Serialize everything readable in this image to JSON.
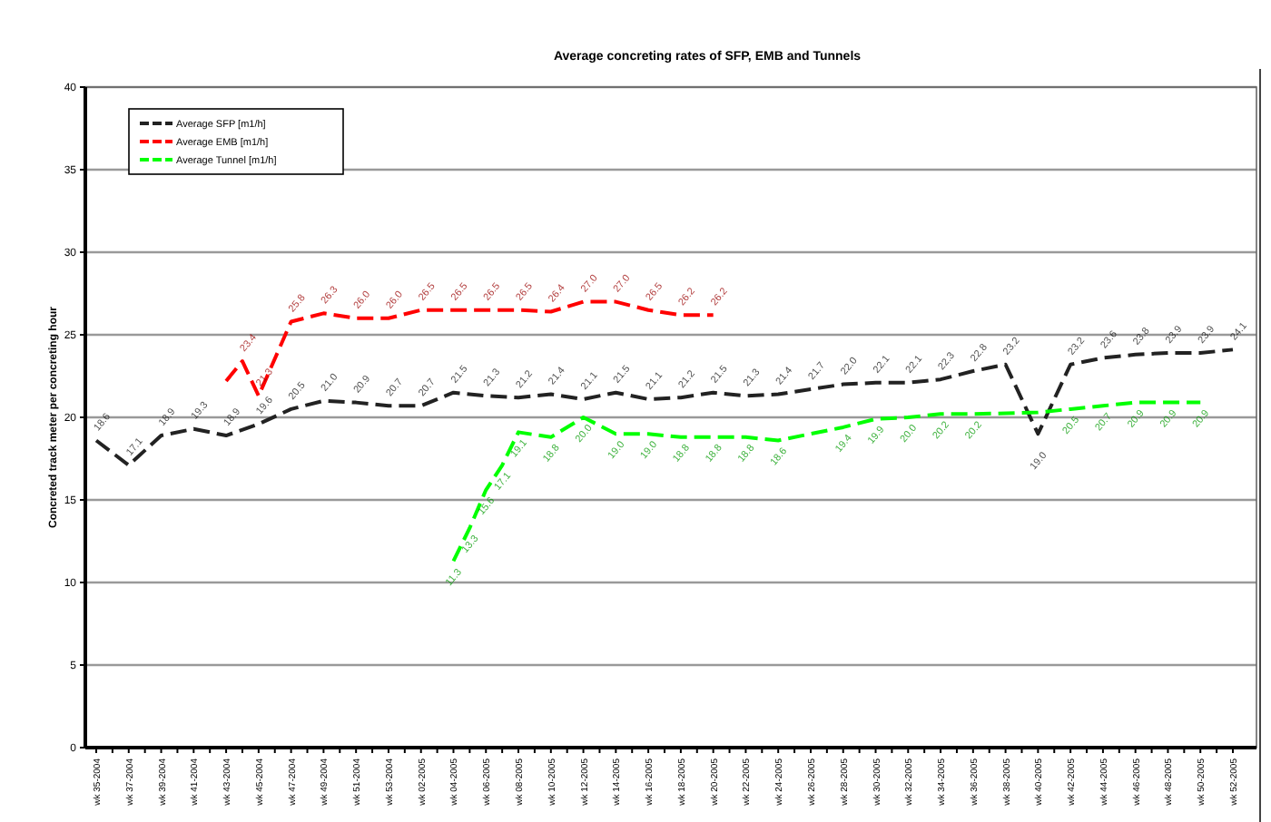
{
  "chart_data": {
    "type": "line",
    "title": "Average concreting rates of SFP, EMB and Tunnels",
    "ylabel": "Concreted track meter per concreting hour",
    "categories": [
      "wk 35-2004",
      null,
      "wk 37-2004",
      null,
      "wk 39-2004",
      null,
      "wk 41-2004",
      null,
      "wk 43-2004",
      null,
      "wk 45-2004",
      null,
      "wk 47-2004",
      null,
      "wk 49-2004",
      null,
      "wk 51-2004",
      null,
      "wk 53-2004",
      null,
      "wk 02-2005",
      null,
      "wk 04-2005",
      null,
      "wk 06-2005",
      null,
      "wk 08-2005",
      null,
      "wk 10-2005",
      null,
      "wk 12-2005",
      null,
      "wk 14-2005",
      null,
      "wk 16-2005",
      null,
      "wk 18-2005",
      null,
      "wk 20-2005",
      null,
      "wk 22-2005",
      null,
      "wk 24-2005",
      null,
      "wk 26-2005",
      null,
      "wk 28-2005",
      null,
      "wk 30-2005",
      null,
      "wk 32-2005",
      null,
      "wk 34-2005",
      null,
      "wk 36-2005",
      null,
      "wk 38-2005",
      null,
      "wk 40-2005",
      null,
      "wk 42-2005",
      null,
      "wk 44-2005",
      null,
      "wk 46-2005",
      null,
      "wk 48-2005",
      null,
      "wk 50-2005",
      null,
      "wk 52-2005"
    ],
    "series": [
      {
        "name": "Average SFP [m1/h]",
        "color": "#222222",
        "values": [
          18.6,
          null,
          17.1,
          null,
          18.9,
          null,
          19.3,
          null,
          18.9,
          null,
          19.6,
          null,
          20.5,
          null,
          21.0,
          null,
          20.9,
          null,
          20.7,
          null,
          20.7,
          null,
          21.5,
          null,
          21.3,
          null,
          21.2,
          null,
          21.4,
          null,
          21.1,
          null,
          21.5,
          null,
          21.1,
          null,
          21.2,
          null,
          21.5,
          null,
          21.3,
          null,
          21.4,
          null,
          21.7,
          null,
          22.0,
          null,
          22.1,
          null,
          22.1,
          null,
          22.3,
          null,
          22.8,
          null,
          23.2,
          null,
          19.0,
          null,
          23.2,
          null,
          23.6,
          null,
          23.8,
          null,
          23.9,
          null,
          23.9,
          null,
          24.1
        ],
        "value_labels": [
          "18.6",
          null,
          "17.1",
          null,
          "18.9",
          null,
          "19.3",
          null,
          "18.9",
          null,
          "19.6",
          null,
          "20.5",
          null,
          "21.0",
          null,
          "20.9",
          null,
          "20.7",
          null,
          "20.7",
          null,
          "21.5",
          null,
          "21.3",
          null,
          "21.2",
          null,
          "21.4",
          null,
          "21.1",
          null,
          "21.5",
          null,
          "21.1",
          null,
          "21.2",
          null,
          "21.5",
          null,
          "21.3",
          null,
          "21.4",
          null,
          "21.7",
          null,
          "22.0",
          null,
          "22.1",
          null,
          "22.1",
          null,
          "22.3",
          null,
          "22.8",
          null,
          "23.2",
          null,
          "19.0",
          null,
          "23.2",
          null,
          "23.6",
          null,
          "23.8",
          null,
          "23.9",
          null,
          "23.9",
          null,
          "24.1"
        ]
      },
      {
        "name": "Average EMB [m1/h]",
        "color": "#ff0000",
        "values": [
          null,
          null,
          null,
          null,
          null,
          null,
          null,
          null,
          22.2,
          23.4,
          21.3,
          null,
          25.8,
          null,
          26.3,
          null,
          26.0,
          null,
          26.0,
          null,
          26.5,
          null,
          26.5,
          null,
          26.5,
          null,
          26.5,
          null,
          26.4,
          null,
          27.0,
          null,
          27.0,
          null,
          26.5,
          null,
          26.2,
          null,
          26.2,
          null,
          null,
          null,
          null,
          null,
          null,
          null,
          null,
          null,
          null,
          null,
          null,
          null,
          null,
          null,
          null,
          null,
          null,
          null,
          null,
          null,
          null,
          null,
          null,
          null,
          null,
          null,
          null,
          null,
          null,
          null,
          null
        ],
        "value_labels": [
          null,
          null,
          null,
          null,
          null,
          null,
          null,
          null,
          null,
          "23.4",
          "21.3",
          null,
          "25.8",
          null,
          "26.3",
          null,
          "26.0",
          null,
          "26.0",
          null,
          "26.5",
          null,
          "26.5",
          null,
          "26.5",
          null,
          "26.5",
          null,
          "26.4",
          null,
          "27.0",
          null,
          "27.0",
          null,
          "26.5",
          null,
          "26.2",
          null,
          "26.2",
          null,
          null,
          null,
          null,
          null,
          null,
          null,
          null,
          null,
          null,
          null,
          null,
          null,
          null,
          null,
          null,
          null,
          null,
          null,
          null,
          null,
          null,
          null,
          null,
          null,
          null,
          null,
          null,
          null,
          null,
          null,
          null
        ]
      },
      {
        "name": "Average Tunnel [m1/h]",
        "color": "#00ff00",
        "values": [
          null,
          null,
          null,
          null,
          null,
          null,
          null,
          null,
          null,
          null,
          null,
          null,
          null,
          null,
          null,
          null,
          null,
          null,
          null,
          null,
          null,
          null,
          11.3,
          13.3,
          15.6,
          17.1,
          19.1,
          null,
          18.8,
          null,
          20.0,
          null,
          19.0,
          null,
          19.0,
          null,
          18.8,
          null,
          18.8,
          null,
          18.8,
          null,
          18.6,
          null,
          null,
          null,
          19.4,
          null,
          19.9,
          null,
          20.0,
          null,
          20.2,
          null,
          20.2,
          null,
          null,
          null,
          20.3,
          null,
          20.5,
          null,
          20.7,
          null,
          20.9,
          null,
          20.9,
          null,
          20.9,
          null,
          null
        ],
        "value_labels": [
          null,
          null,
          null,
          null,
          null,
          null,
          null,
          null,
          null,
          null,
          null,
          null,
          null,
          null,
          null,
          null,
          null,
          null,
          null,
          null,
          null,
          null,
          "11.3",
          "13.3",
          "15.6",
          "17.1",
          "19.1",
          null,
          "18.8",
          null,
          "20.0",
          null,
          "19.0",
          null,
          "19.0",
          null,
          "18.8",
          null,
          "18.8",
          null,
          "18.8",
          null,
          "18.6",
          null,
          null,
          null,
          "19.4",
          null,
          "19.9",
          null,
          "20.0",
          null,
          "20.2",
          null,
          "20.2",
          null,
          null,
          null,
          null,
          null,
          "20.5",
          null,
          "20.7",
          null,
          "20.9",
          null,
          "20.9",
          null,
          "20.9",
          null,
          null
        ]
      }
    ],
    "ylim": [
      0,
      40
    ],
    "yticks": [
      0,
      5,
      10,
      15,
      20,
      25,
      30,
      35,
      40
    ],
    "grid": "y",
    "legend": "top left",
    "line_style": "dashed",
    "marker": "none"
  }
}
